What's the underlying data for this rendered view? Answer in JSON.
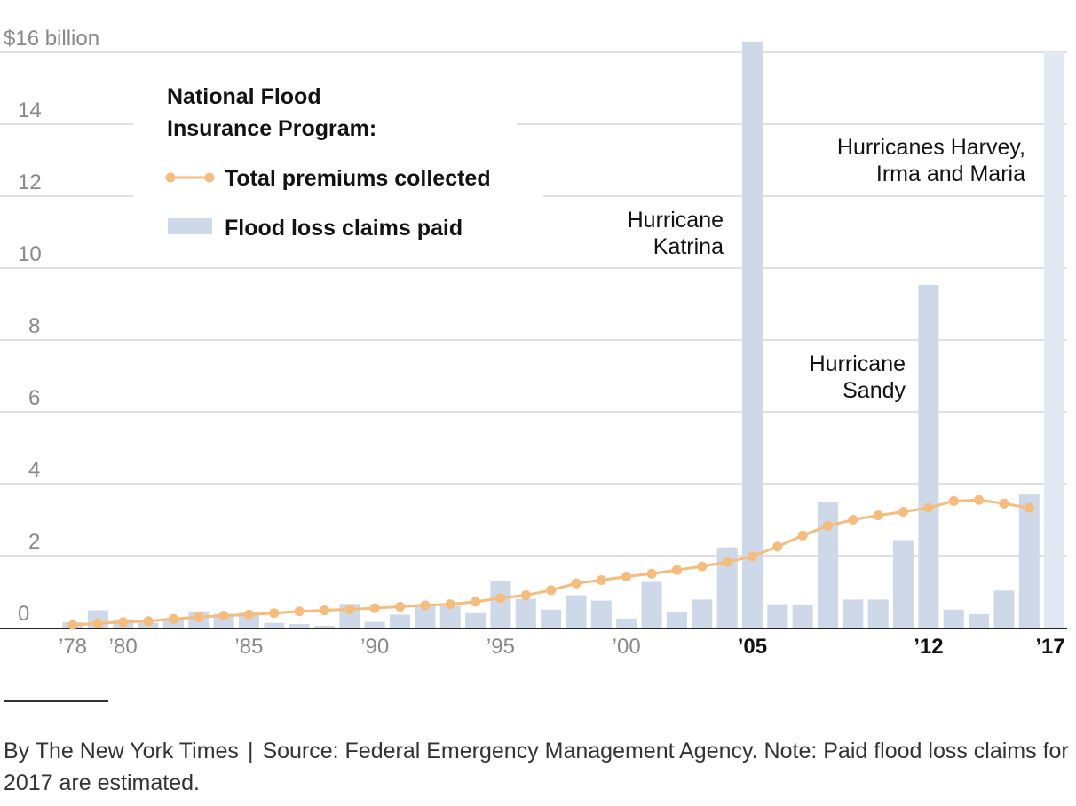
{
  "chart_data": {
    "type": "bar",
    "legend": {
      "title_lines": [
        "National Flood",
        "Insurance Program:"
      ],
      "line_label": "Total premiums collected",
      "bar_label": "Flood loss claims paid",
      "placement": "top-left"
    },
    "y_axis": {
      "unit_label": "$16 billion",
      "ticks": [
        "0",
        "2",
        "4",
        "6",
        "8",
        "10",
        "12",
        "14"
      ],
      "ylim": [
        0,
        16.5
      ],
      "grid": true
    },
    "x_axis": {
      "ticks": [
        {
          "year": 1978,
          "label": "’78",
          "bold": false
        },
        {
          "year": 1980,
          "label": "’80",
          "bold": false
        },
        {
          "year": 1985,
          "label": "’85",
          "bold": false
        },
        {
          "year": 1990,
          "label": "’90",
          "bold": false
        },
        {
          "year": 1995,
          "label": "’95",
          "bold": false
        },
        {
          "year": 2000,
          "label": "’00",
          "bold": false
        },
        {
          "year": 2005,
          "label": "’05",
          "bold": true
        },
        {
          "year": 2012,
          "label": "’12",
          "bold": true
        },
        {
          "year": 2017,
          "label": "’17",
          "bold": true
        }
      ]
    },
    "years": [
      1978,
      1979,
      1980,
      1981,
      1982,
      1983,
      1984,
      1985,
      1986,
      1987,
      1988,
      1989,
      1990,
      1991,
      1992,
      1993,
      1994,
      1995,
      1996,
      1997,
      1998,
      1999,
      2000,
      2001,
      2002,
      2003,
      2004,
      2005,
      2006,
      2007,
      2008,
      2009,
      2010,
      2011,
      2012,
      2013,
      2014,
      2015,
      2016,
      2017
    ],
    "series": [
      {
        "name": "Flood loss claims paid",
        "kind": "bar",
        "color": "#cdd8e8",
        "values": [
          0.15,
          0.48,
          0.23,
          0.13,
          0.24,
          0.45,
          0.38,
          0.42,
          0.13,
          0.1,
          0.05,
          0.66,
          0.16,
          0.36,
          0.66,
          0.6,
          0.4,
          1.3,
          0.8,
          0.5,
          0.9,
          0.75,
          0.25,
          1.27,
          0.43,
          0.78,
          2.23,
          16.3,
          0.65,
          0.62,
          3.5,
          0.78,
          0.78,
          2.43,
          9.53,
          0.5,
          0.37,
          1.03,
          3.7,
          16.0
        ]
      },
      {
        "name": "Total premiums collected",
        "kind": "line",
        "color": "#f6bc7c",
        "values": [
          0.07,
          0.12,
          0.15,
          0.18,
          0.24,
          0.29,
          0.33,
          0.36,
          0.4,
          0.45,
          0.48,
          0.51,
          0.54,
          0.58,
          0.62,
          0.65,
          0.72,
          0.82,
          0.9,
          1.04,
          1.23,
          1.32,
          1.42,
          1.5,
          1.6,
          1.7,
          1.82,
          1.98,
          2.25,
          2.56,
          2.83,
          3.0,
          3.12,
          3.22,
          3.33,
          3.52,
          3.55,
          3.45,
          3.33,
          null
        ]
      }
    ],
    "annotations": [
      {
        "lines": [
          "Hurricane",
          "Katrina"
        ]
      },
      {
        "lines": [
          "Hurricane",
          "Sandy"
        ]
      },
      {
        "lines": [
          "Hurricanes Harvey,",
          "Irma and Maria"
        ]
      }
    ],
    "estimated_bar_color": "#e3e9f3"
  },
  "footer": {
    "credit": "By The New York Times",
    "separator": "|",
    "source": "Source: Federal Emergency Management Agency. Note: Paid flood loss claims for 2017 are estimated."
  }
}
